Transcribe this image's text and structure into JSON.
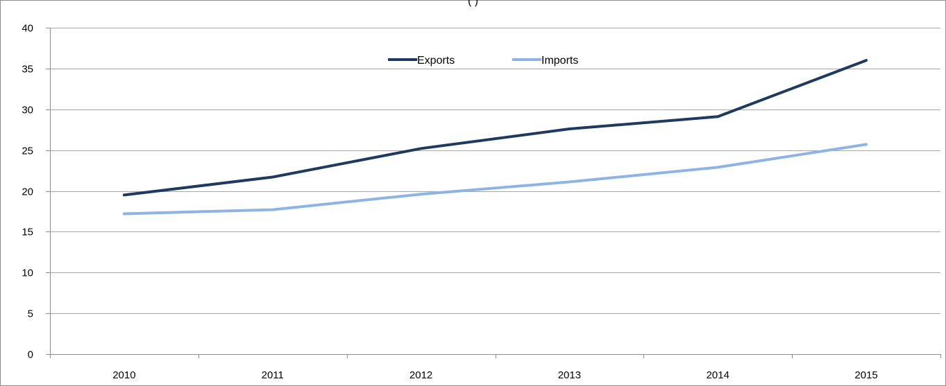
{
  "chart_data": {
    "type": "line",
    "title": "(                )",
    "xlabel": "",
    "ylabel": "",
    "categories": [
      "2010",
      "2011",
      "2012",
      "2013",
      "2014",
      "2015"
    ],
    "ylim": [
      0,
      40
    ],
    "yticks": [
      0,
      5,
      10,
      15,
      20,
      25,
      30,
      35,
      40
    ],
    "grid": true,
    "legend_position": "top-center",
    "series": [
      {
        "name": "Exports",
        "color": "#1f3a5f",
        "values": [
          19.5,
          21.7,
          25.2,
          27.6,
          29.1,
          36.0
        ]
      },
      {
        "name": "Imports",
        "color": "#8eb4e3",
        "values": [
          17.2,
          17.7,
          19.6,
          21.1,
          22.9,
          25.7
        ]
      }
    ]
  }
}
